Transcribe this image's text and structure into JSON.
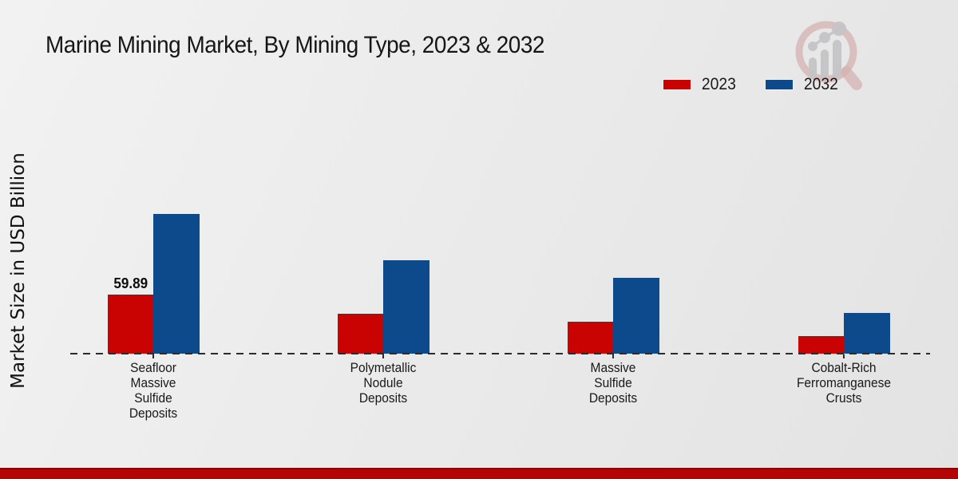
{
  "title": "Marine Mining Market, By Mining Type, 2023 & 2032",
  "ylabel": "Market Size in USD Billion",
  "legend": [
    {
      "label": "2023",
      "color": "#c90202"
    },
    {
      "label": "2032",
      "color": "#0d4a8c"
    }
  ],
  "logo": {
    "name": "magnifier-bar-chart-watermark",
    "ring_color": "#d5b2b2",
    "bars_color": "#c5c5c8"
  },
  "footer_color": "#b30505",
  "chart_data": {
    "type": "bar",
    "title": "Marine Mining Market, By Mining Type, 2023 & 2032",
    "ylabel": "Market Size in USD Billion",
    "xlabel": "",
    "legend_position": "top-right",
    "grid": false,
    "baseline_style": "dashed",
    "ylim": [
      0,
      260
    ],
    "categories": [
      "Seafloor Massive Sulfide Deposits",
      "Polymetallic Nodule Deposits",
      "Massive Sulfide Deposits",
      "Cobalt-Rich Ferromanganese Crusts"
    ],
    "categories_wrapped": [
      [
        "Seafloor",
        "Massive",
        "Sulfide",
        "Deposits"
      ],
      [
        "Polymetallic",
        "Nodule",
        "Deposits"
      ],
      [
        "Massive",
        "Sulfide",
        "Deposits"
      ],
      [
        "Cobalt-Rich",
        "Ferromanganese",
        "Crusts"
      ]
    ],
    "series": [
      {
        "name": "2023",
        "color": "#c90202",
        "values": [
          59.89,
          40.0,
          32.4,
          17.8
        ]
      },
      {
        "name": "2032",
        "color": "#0d4a8c",
        "values": [
          140.5,
          94.5,
          76.4,
          41.0
        ]
      }
    ],
    "data_labels": [
      {
        "series_index": 0,
        "category_index": 0,
        "text": "59.89"
      }
    ],
    "units": "USD Billion"
  }
}
